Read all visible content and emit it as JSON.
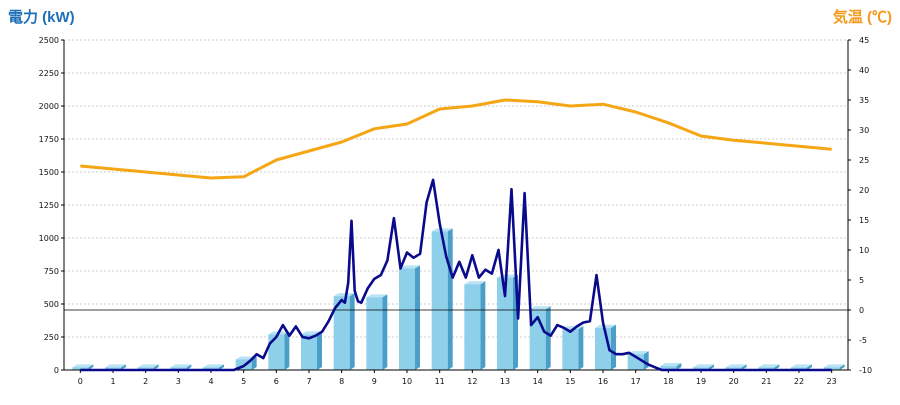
{
  "chart_data": {
    "type": "bar",
    "left_axis_title": "電力 (kW)",
    "right_axis_title": "気温 (℃)",
    "categories": [
      "0",
      "1",
      "2",
      "3",
      "4",
      "5",
      "6",
      "7",
      "8",
      "9",
      "10",
      "11",
      "12",
      "13",
      "14",
      "15",
      "16",
      "17",
      "18",
      "19",
      "20",
      "21",
      "22",
      "23"
    ],
    "y_left": {
      "range": [
        0,
        2500
      ],
      "ticks": [
        0,
        250,
        500,
        750,
        1000,
        1250,
        1500,
        1750,
        2000,
        2250,
        2500
      ]
    },
    "y_right": {
      "range": [
        -10,
        45
      ],
      "ticks": [
        -10,
        -5,
        0,
        5,
        10,
        15,
        20,
        25,
        30,
        35,
        40,
        45
      ]
    },
    "grid": true,
    "colors": {
      "bar": "#8ecfea",
      "bar_side": "#4a9ec7",
      "power_line": "#0a0a8c",
      "temp_line": "#f4a614",
      "grid": "#bfbfbf",
      "axis": "#000000",
      "left_title": "#1f6fb6",
      "right_title": "#f39a1c"
    },
    "series": [
      {
        "kind": "bar",
        "axis": "left",
        "values": [
          20,
          20,
          20,
          20,
          20,
          80,
          270,
          270,
          560,
          550,
          770,
          1050,
          650,
          700,
          460,
          310,
          320,
          120,
          30,
          20,
          20,
          20,
          20,
          20
        ]
      },
      {
        "kind": "line",
        "axis": "left",
        "x": [
          0,
          0.5,
          1,
          1.5,
          2,
          2.5,
          3,
          3.5,
          4,
          4.5,
          4.7,
          5,
          5.2,
          5.4,
          5.6,
          5.8,
          6,
          6.2,
          6.4,
          6.6,
          6.8,
          7,
          7.2,
          7.4,
          7.6,
          7.8,
          8,
          8.1,
          8.2,
          8.3,
          8.4,
          8.5,
          8.6,
          8.8,
          9,
          9.2,
          9.4,
          9.6,
          9.8,
          10,
          10.2,
          10.4,
          10.6,
          10.8,
          11,
          11.2,
          11.4,
          11.6,
          11.8,
          12,
          12.2,
          12.4,
          12.6,
          12.8,
          13,
          13.2,
          13.4,
          13.6,
          13.8,
          14,
          14.2,
          14.4,
          14.6,
          14.8,
          15,
          15.2,
          15.4,
          15.6,
          15.8,
          16,
          16.2,
          16.4,
          16.6,
          16.8,
          17,
          17.2,
          17.4,
          17.6,
          17.8,
          18,
          19,
          20,
          21,
          22,
          23
        ],
        "y": [
          0,
          0,
          0,
          0,
          0,
          0,
          0,
          0,
          0,
          0,
          0,
          30,
          70,
          120,
          90,
          200,
          250,
          340,
          260,
          330,
          250,
          240,
          260,
          290,
          370,
          470,
          530,
          510,
          660,
          1130,
          600,
          520,
          510,
          620,
          690,
          720,
          830,
          1150,
          770,
          890,
          850,
          880,
          1270,
          1440,
          1110,
          860,
          700,
          820,
          700,
          870,
          700,
          760,
          730,
          910,
          560,
          1370,
          390,
          1340,
          340,
          400,
          290,
          260,
          340,
          320,
          290,
          330,
          360,
          370,
          720,
          360,
          150,
          120,
          120,
          130,
          100,
          70,
          40,
          20,
          0,
          0,
          0,
          0,
          0,
          0,
          0
        ]
      },
      {
        "kind": "line",
        "axis": "right",
        "values": [
          24.0,
          23.5,
          23.0,
          22.5,
          22.0,
          22.2,
          25.0,
          26.5,
          28.0,
          30.2,
          31.0,
          33.5,
          34.0,
          35.0,
          34.7,
          34.0,
          34.3,
          33.0,
          31.2,
          29.0,
          28.3,
          27.8,
          27.3,
          26.8
        ]
      }
    ]
  }
}
